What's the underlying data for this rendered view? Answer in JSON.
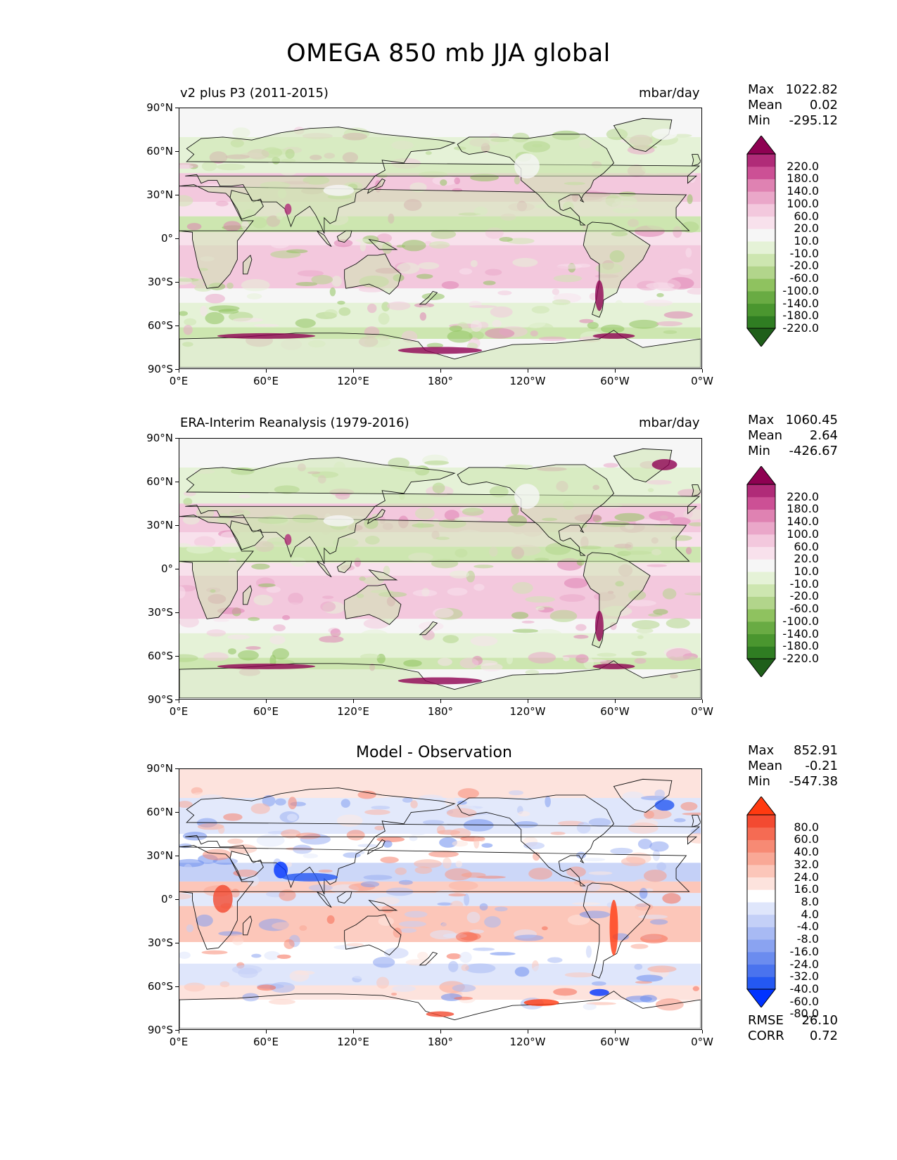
{
  "figure_title": "OMEGA 850 mb JJA global",
  "colors": {
    "seq": [
      "#1f5f1a",
      "#2f7d22",
      "#4a962f",
      "#69ab43",
      "#8fc25f",
      "#b2d58b",
      "#cde6b0",
      "#e5f2d7",
      "#f6f6f6",
      "#f8e1ec",
      "#f3c8dd",
      "#eaa7c9",
      "#df82b2",
      "#cc5095",
      "#b02b78",
      "#8e0152"
    ],
    "diff": [
      "#0033ff",
      "#2458f2",
      "#4a73ee",
      "#6b8cef",
      "#8aa3f1",
      "#a8baf4",
      "#c4d0f7",
      "#dfe6fb",
      "#ffffff",
      "#fde3dd",
      "#fcc6b9",
      "#f9a896",
      "#f78a74",
      "#f56b53",
      "#f34a31",
      "#ff3a10"
    ]
  },
  "chart_data": [
    {
      "type": "heatmap",
      "title": "v2 plus P3 (2011-2015)",
      "units": "mbar/day",
      "stats": {
        "max_label": "Max",
        "max": "1022.82",
        "mean_label": "Mean",
        "mean": "0.02",
        "min_label": "Min",
        "min": "-295.12"
      },
      "levels": [
        "220.0",
        "180.0",
        "140.0",
        "100.0",
        "60.0",
        "20.0",
        "10.0",
        "-10.0",
        "-20.0",
        "-60.0",
        "-100.0",
        "-140.0",
        "-180.0",
        "-220.0"
      ],
      "xticks": [
        "0°E",
        "60°E",
        "120°E",
        "180°",
        "120°W",
        "60°W",
        "0°W"
      ],
      "yticks": [
        "90°N",
        "60°N",
        "30°N",
        "0°",
        "30°S",
        "60°S",
        "90°S"
      ],
      "xlim": [
        0,
        360
      ],
      "ylim": [
        -90,
        90
      ]
    },
    {
      "type": "heatmap",
      "title": "ERA-Interim Reanalysis (1979-2016)",
      "units": "mbar/day",
      "stats": {
        "max_label": "Max",
        "max": "1060.45",
        "mean_label": "Mean",
        "mean": "2.64",
        "min_label": "Min",
        "min": "-426.67"
      },
      "levels": [
        "220.0",
        "180.0",
        "140.0",
        "100.0",
        "60.0",
        "20.0",
        "10.0",
        "-10.0",
        "-20.0",
        "-60.0",
        "-100.0",
        "-140.0",
        "-180.0",
        "-220.0"
      ],
      "xticks": [
        "0°E",
        "60°E",
        "120°E",
        "180°",
        "120°W",
        "60°W",
        "0°W"
      ],
      "yticks": [
        "90°N",
        "60°N",
        "30°N",
        "0°",
        "30°S",
        "60°S",
        "90°S"
      ],
      "xlim": [
        0,
        360
      ],
      "ylim": [
        -90,
        90
      ]
    },
    {
      "type": "heatmap",
      "title": "Model - Observation",
      "units": "",
      "stats": {
        "max_label": "Max",
        "max": "852.91",
        "mean_label": "Mean",
        "mean": "-0.21",
        "min_label": "Min",
        "min": "-547.38"
      },
      "metrics": {
        "rmse_label": "RMSE",
        "rmse": "26.10",
        "corr_label": "CORR",
        "corr": "0.72"
      },
      "levels": [
        "80.0",
        "60.0",
        "40.0",
        "32.0",
        "24.0",
        "16.0",
        "8.0",
        "4.0",
        "-4.0",
        "-8.0",
        "-16.0",
        "-24.0",
        "-32.0",
        "-40.0",
        "-60.0",
        "-80.0"
      ],
      "xticks": [
        "0°E",
        "60°E",
        "120°E",
        "180°",
        "120°W",
        "60°W",
        "0°W"
      ],
      "yticks": [
        "90°N",
        "60°N",
        "30°N",
        "0°",
        "30°S",
        "60°S",
        "90°S"
      ],
      "xlim": [
        0,
        360
      ],
      "ylim": [
        -90,
        90
      ]
    }
  ]
}
